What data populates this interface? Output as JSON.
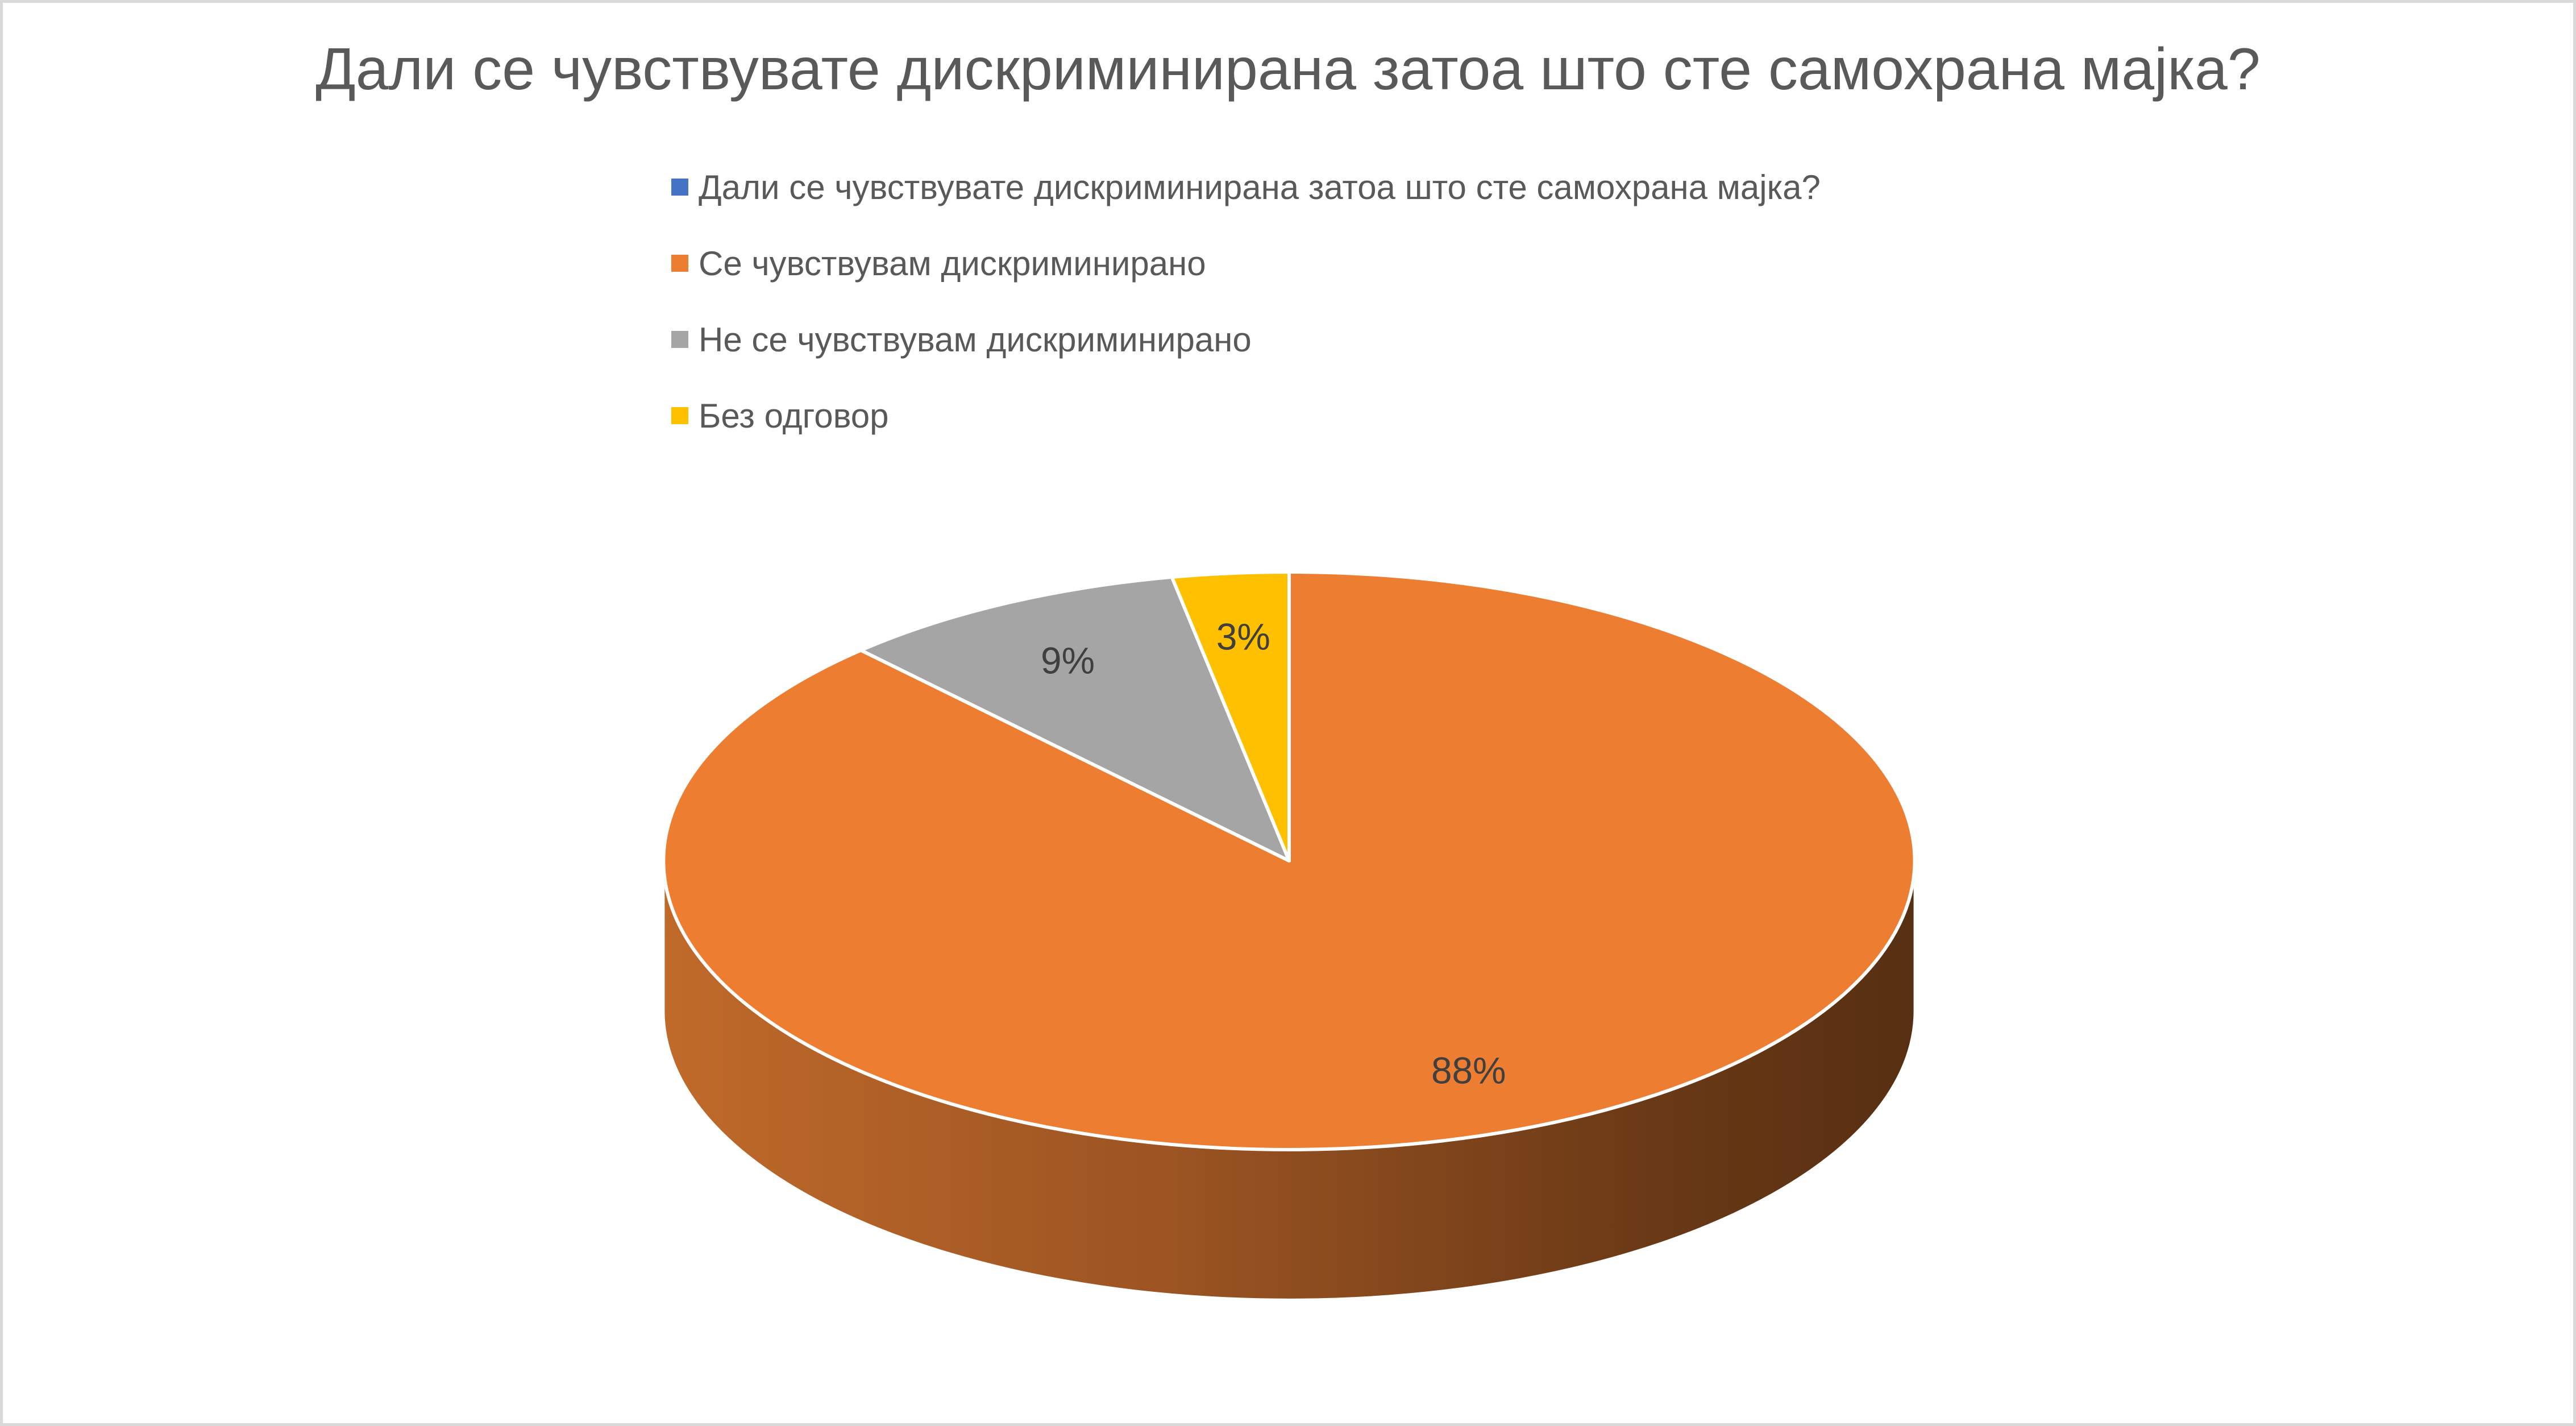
{
  "page": {
    "background_color": "#FFFFFF",
    "frame_border_color": "#D9D9D9"
  },
  "chart": {
    "title": "Дали се чувствувате дискриминирана затоа што сте самохрана мајка?",
    "title_color": "#595959"
  },
  "legend": {
    "position": "top",
    "text_color": "#595959",
    "items": [
      {
        "label": "Дали се чувствувате дискриминирана затоа што сте самохрана мајка?",
        "color": "#4472C4"
      },
      {
        "label": "Се чувствувам дискриминирано",
        "color": "#ED7D31"
      },
      {
        "label": "Не се чувствувам дискриминирано",
        "color": "#A5A5A5"
      },
      {
        "label": "Без одговор",
        "color": "#FFC000"
      }
    ]
  },
  "chart_data": {
    "type": "pie",
    "style": "3d",
    "title": "Дали се чувствувате дискриминирана затоа што сте самохрана мајка?",
    "series_header": "Дали се чувствувате дискриминирана затоа што сте самохрана мајка?",
    "categories": [
      "Се чувствувам дискриминирано",
      "Не се чувствувам дискриминирано",
      "Без одговор"
    ],
    "values": [
      88,
      9,
      3
    ],
    "data_labels": [
      "88%",
      "9%",
      "3%"
    ],
    "slice_colors": [
      "#ED7D31",
      "#A5A5A5",
      "#FFC000"
    ],
    "data_label_color": "#3F3F3F",
    "slice_separator_color": "#FFFFFF",
    "side_gradient_colors": [
      "#C06A2A",
      "#9A5322",
      "#6B3A16",
      "#572F12"
    ],
    "start_angle_deg": 0,
    "direction": "clockwise",
    "legend_position": "top",
    "grid": false
  }
}
